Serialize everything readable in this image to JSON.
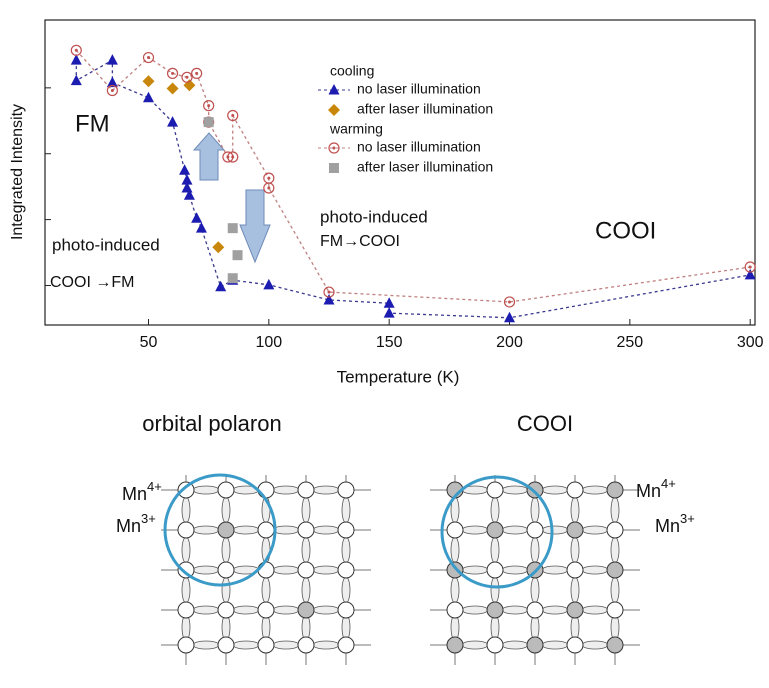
{
  "chart_data": {
    "type": "scatter",
    "x_label": "Temperature (K)",
    "y_label": "Integrated Intensity",
    "xlim": [
      7,
      302
    ],
    "xticks": [
      50,
      100,
      150,
      200,
      250,
      300
    ],
    "ylim": [
      0.4,
      5.03
    ],
    "yticks": [
      1,
      2,
      3,
      4
    ],
    "legend_groups": [
      "cooling",
      "warming"
    ],
    "series": [
      {
        "name": "no laser illumination",
        "group": 0,
        "color": "#1c1cb0",
        "marker": "triangle",
        "line": true,
        "line_color": "#3a3a90",
        "x": [
          20,
          20,
          35,
          35,
          50,
          60,
          65,
          66,
          66,
          67,
          70,
          72,
          80,
          85,
          100,
          125,
          150,
          150,
          200,
          300
        ],
        "values": [
          4.42,
          4.11,
          4.42,
          4.08,
          3.85,
          3.48,
          2.75,
          2.6,
          2.48,
          2.37,
          2.02,
          1.87,
          0.98,
          1.08,
          1.01,
          0.78,
          0.73,
          0.58,
          0.51,
          1.16
        ]
      },
      {
        "name": "after laser illumination",
        "group": 0,
        "color": "#c8860a",
        "marker": "diamond",
        "line": false,
        "x": [
          50,
          60,
          67,
          79
        ],
        "values": [
          4.1,
          3.99,
          4.04,
          1.58
        ]
      },
      {
        "name": "no laser illumination",
        "group": 1,
        "color": "#c05050",
        "marker": "circle",
        "line": true,
        "line_color": "#c08080",
        "x": [
          20,
          35,
          50,
          60,
          66,
          70,
          75,
          75,
          83,
          85,
          85,
          100,
          100,
          125,
          200,
          300
        ],
        "values": [
          4.57,
          3.96,
          4.46,
          4.22,
          4.16,
          4.22,
          3.73,
          3.48,
          2.95,
          2.95,
          3.58,
          2.63,
          2.48,
          0.9,
          0.75,
          1.28
        ]
      },
      {
        "name": "after laser illumination",
        "group": 1,
        "color": "#a0a0a0",
        "marker": "square",
        "line": false,
        "x": [
          75,
          85,
          87,
          85
        ],
        "values": [
          3.48,
          1.87,
          1.46,
          1.11
        ]
      }
    ],
    "annotations": [
      "FM",
      "photo-induced",
      "COOI →FM",
      "photo-induced",
      "FM→COOI",
      "COOI"
    ]
  },
  "diagrams": [
    {
      "title": "orbital polaron",
      "labels": [
        {
          "base": "Mn",
          "sup": "4+"
        },
        {
          "base": "Mn",
          "sup": "3+"
        }
      ]
    },
    {
      "title": "COOI",
      "labels": [
        {
          "base": "Mn",
          "sup": "4+"
        },
        {
          "base": "Mn",
          "sup": "3+"
        }
      ]
    }
  ]
}
